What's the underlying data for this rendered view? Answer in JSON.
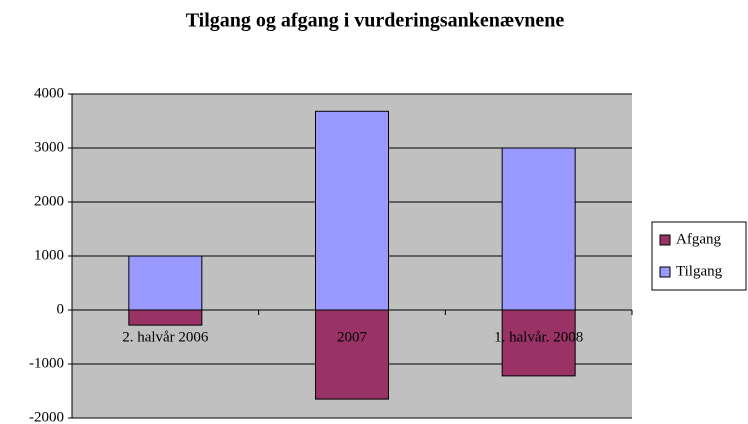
{
  "chart_data": {
    "type": "bar",
    "stacked": true,
    "title": "Tilgang og afgang i vurderingsankenævnene",
    "categories": [
      "2. halvår 2006",
      "2007",
      "1. halvår. 2008"
    ],
    "series": [
      {
        "name": "Afgang",
        "color": "#993366",
        "values": [
          -280,
          -1650,
          -1220
        ]
      },
      {
        "name": "Tilgang",
        "color": "#9999ff",
        "values": [
          1000,
          3680,
          3000
        ]
      }
    ],
    "ylim": [
      -2000,
      4000
    ],
    "yticks": [
      -2000,
      -1000,
      0,
      1000,
      2000,
      3000,
      4000
    ],
    "grid": true,
    "legend": "right"
  }
}
